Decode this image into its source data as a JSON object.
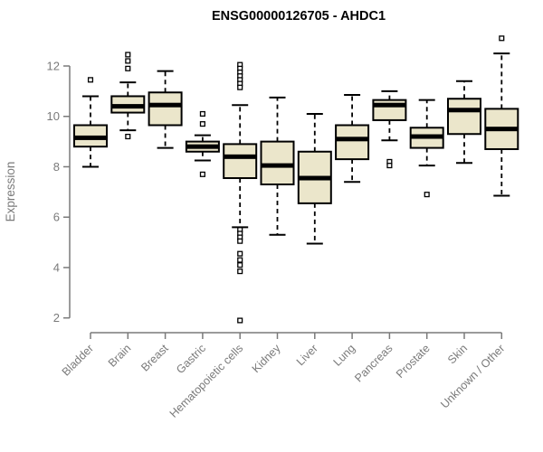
{
  "chart_data": {
    "type": "boxplot",
    "title": "ENSG00000126705 - AHDC1",
    "ylabel": "Expression",
    "xlabel": "",
    "ylim": [
      2,
      12
    ],
    "yticks": [
      2,
      4,
      6,
      8,
      10,
      12
    ],
    "grid": false,
    "legend": "none",
    "categories": [
      "Bladder",
      "Brain",
      "Breast",
      "Gastric",
      "Hematopoietic cells",
      "Kidney",
      "Liver",
      "Lung",
      "Pancreas",
      "Prostate",
      "Skin",
      "Unknown / Other"
    ],
    "boxes": [
      {
        "category": "Bladder",
        "whisker_low": 8.0,
        "q1": 8.8,
        "median": 9.15,
        "q3": 9.65,
        "whisker_high": 10.8,
        "outliers": [
          11.45
        ]
      },
      {
        "category": "Brain",
        "whisker_low": 9.45,
        "q1": 10.15,
        "median": 10.4,
        "q3": 10.8,
        "whisker_high": 11.35,
        "outliers": [
          12.45,
          12.2,
          11.9,
          9.2
        ]
      },
      {
        "category": "Breast",
        "whisker_low": 8.75,
        "q1": 9.65,
        "median": 10.45,
        "q3": 10.95,
        "whisker_high": 11.8,
        "outliers": []
      },
      {
        "category": "Gastric",
        "whisker_low": 8.25,
        "q1": 8.6,
        "median": 8.8,
        "q3": 9.0,
        "whisker_high": 9.25,
        "outliers": [
          10.1,
          9.7,
          7.7
        ]
      },
      {
        "category": "Hematopoietic cells",
        "whisker_low": 5.6,
        "q1": 7.55,
        "median": 8.4,
        "q3": 8.9,
        "whisker_high": 10.45,
        "outliers": [
          12.05,
          11.9,
          11.75,
          11.6,
          11.45,
          11.3,
          11.15,
          5.5,
          5.35,
          5.2,
          5.05,
          4.55,
          4.3,
          4.1,
          3.85,
          1.9
        ]
      },
      {
        "category": "Kidney",
        "whisker_low": 5.3,
        "q1": 7.3,
        "median": 8.05,
        "q3": 9.0,
        "whisker_high": 10.75,
        "outliers": []
      },
      {
        "category": "Liver",
        "whisker_low": 4.95,
        "q1": 6.55,
        "median": 7.55,
        "q3": 8.6,
        "whisker_high": 10.1,
        "outliers": []
      },
      {
        "category": "Lung",
        "whisker_low": 7.4,
        "q1": 8.3,
        "median": 9.1,
        "q3": 9.65,
        "whisker_high": 10.85,
        "outliers": []
      },
      {
        "category": "Pancreas",
        "whisker_low": 9.05,
        "q1": 9.85,
        "median": 10.45,
        "q3": 10.65,
        "whisker_high": 11.0,
        "outliers": [
          8.2,
          8.05
        ]
      },
      {
        "category": "Prostate",
        "whisker_low": 8.05,
        "q1": 8.75,
        "median": 9.2,
        "q3": 9.55,
        "whisker_high": 10.65,
        "outliers": [
          6.9
        ]
      },
      {
        "category": "Skin",
        "whisker_low": 8.15,
        "q1": 9.3,
        "median": 10.25,
        "q3": 10.7,
        "whisker_high": 11.4,
        "outliers": []
      },
      {
        "category": "Unknown / Other",
        "whisker_low": 6.85,
        "q1": 8.7,
        "median": 9.5,
        "q3": 10.3,
        "whisker_high": 12.5,
        "outliers": [
          13.1
        ]
      }
    ],
    "colors": {
      "background": "#ffffff",
      "box_fill": "#ebe6cb",
      "box_stroke": "#000000",
      "median": "#000000",
      "whisker": "#000000",
      "outlier_stroke": "#000000",
      "outlier_fill": "#ffffff",
      "axis": "#7a7a7a",
      "tick_text": "#7a7a7a",
      "title": "#000000"
    }
  }
}
